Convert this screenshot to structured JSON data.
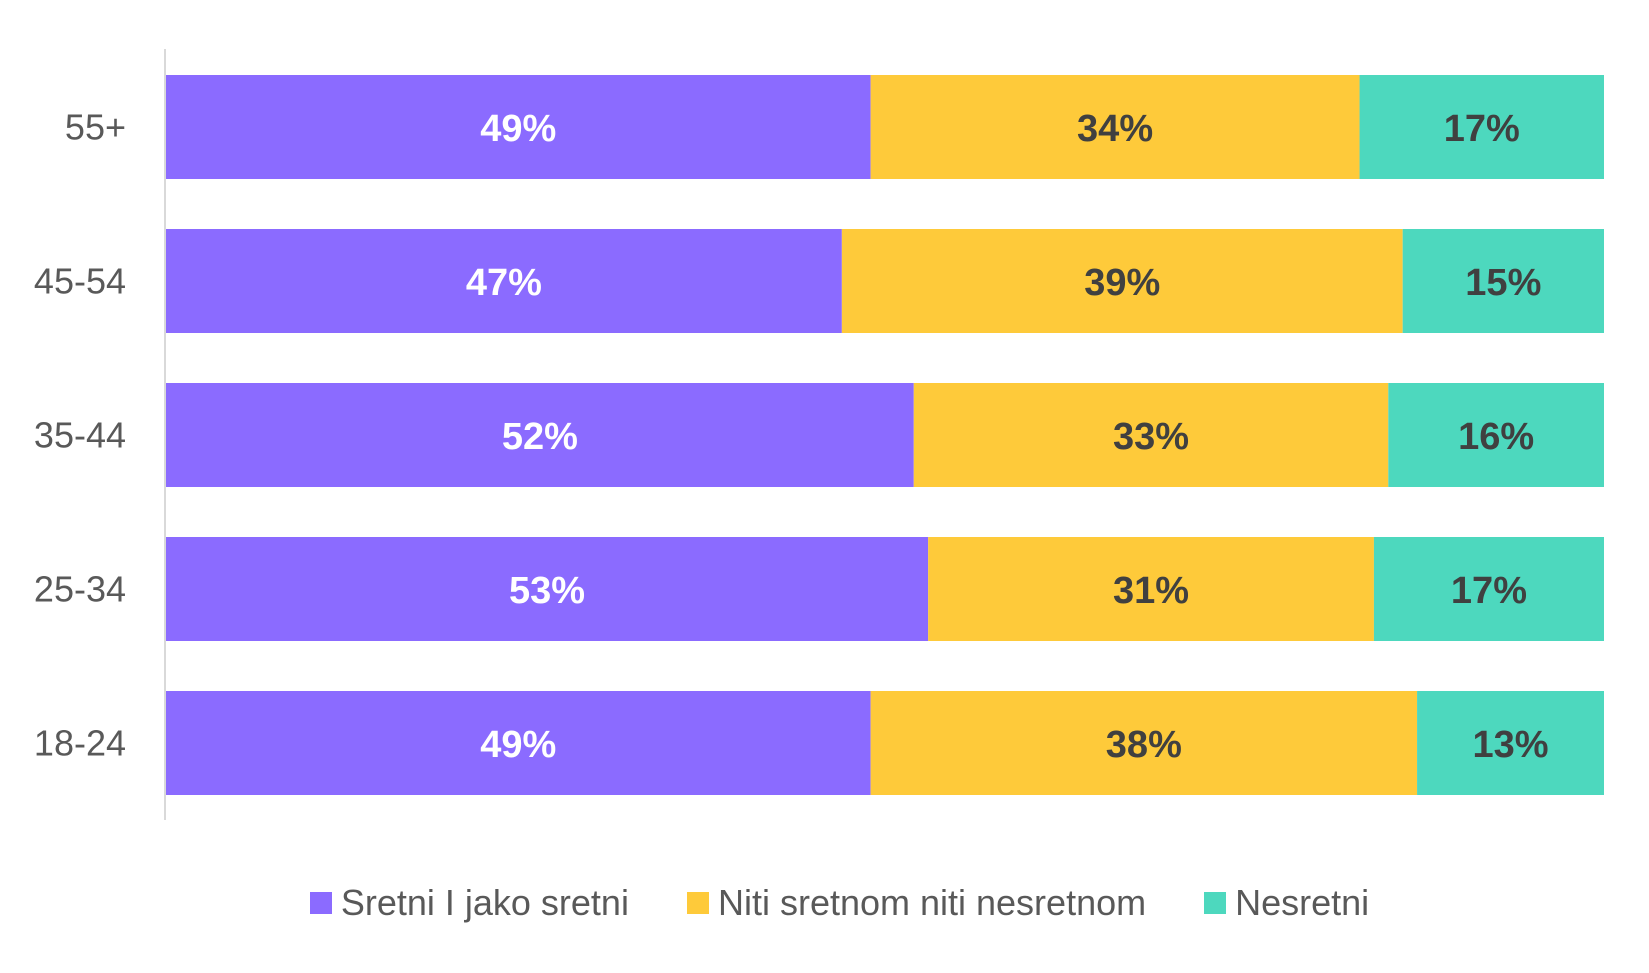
{
  "chart_data": {
    "type": "bar",
    "orientation": "horizontal",
    "stacked": true,
    "stacked_percent": true,
    "categories": [
      "55+",
      "45-54",
      "35-44",
      "25-34",
      "18-24"
    ],
    "series": [
      {
        "name": "Sretni I jako sretni",
        "color": "#8B6BFF",
        "label_color": "#FFFFFF",
        "values": [
          49,
          47,
          52,
          53,
          49
        ],
        "labels": [
          "49%",
          "47%",
          "52%",
          "53%",
          "49%"
        ]
      },
      {
        "name": "Niti sretnom niti nesretnom",
        "color": "#FECA3A",
        "label_color": "#404040",
        "values": [
          34,
          39,
          33,
          31,
          38
        ],
        "labels": [
          "34%",
          "39%",
          "33%",
          "31%",
          "38%"
        ]
      },
      {
        "name": "Nesretni",
        "color": "#4DD8BE",
        "label_color": "#404040",
        "values": [
          17,
          15,
          16,
          17,
          13
        ],
        "labels": [
          "17%",
          "15%",
          "16%",
          "17%",
          "13%"
        ]
      }
    ],
    "xlim": [
      0,
      100
    ],
    "grid": false,
    "legend_position": "bottom",
    "axis_color": "#D9D9D9"
  }
}
